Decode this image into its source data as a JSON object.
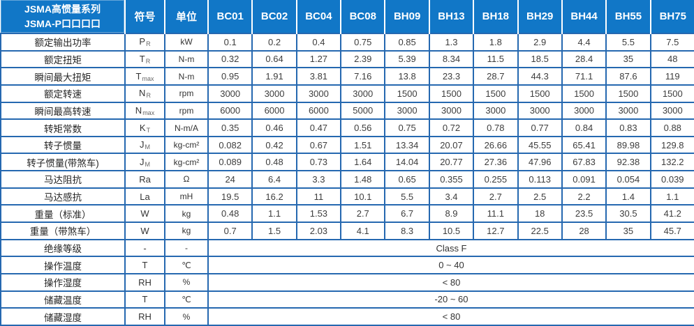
{
  "header": {
    "title_line1": "JSMA高惯量系列",
    "title_line2": "JSMA-P口口口口",
    "symbol_col": "符号",
    "unit_col": "单位",
    "models": [
      "BC01",
      "BC02",
      "BC04",
      "BC08",
      "BH09",
      "BH13",
      "BH18",
      "BH29",
      "BH44",
      "BH55",
      "BH75"
    ]
  },
  "colors": {
    "header_bg": "#1177c7",
    "border_blue": "#2568b0",
    "value_text": "#3d3d3d"
  },
  "rows": [
    {
      "label": "额定输出功率",
      "symbol": "P",
      "sub": "R",
      "unit": "kW",
      "values": [
        "0.1",
        "0.2",
        "0.4",
        "0.75",
        "0.85",
        "1.3",
        "1.8",
        "2.9",
        "4.4",
        "5.5",
        "7.5"
      ]
    },
    {
      "label": "额定扭矩",
      "symbol": "T",
      "sub": "R",
      "unit": "N-m",
      "values": [
        "0.32",
        "0.64",
        "1.27",
        "2.39",
        "5.39",
        "8.34",
        "11.5",
        "18.5",
        "28.4",
        "35",
        "48"
      ]
    },
    {
      "label": "瞬间最大扭矩",
      "symbol": "T",
      "sub": "max",
      "unit": "N-m",
      "values": [
        "0.95",
        "1.91",
        "3.81",
        "7.16",
        "13.8",
        "23.3",
        "28.7",
        "44.3",
        "71.1",
        "87.6",
        "119"
      ]
    },
    {
      "label": "额定转速",
      "symbol": "N",
      "sub": "R",
      "unit": "rpm",
      "values": [
        "3000",
        "3000",
        "3000",
        "3000",
        "1500",
        "1500",
        "1500",
        "1500",
        "1500",
        "1500",
        "1500"
      ]
    },
    {
      "label": "瞬间最高转速",
      "symbol": "N",
      "sub": "max",
      "unit": "rpm",
      "values": [
        "6000",
        "6000",
        "6000",
        "5000",
        "3000",
        "3000",
        "3000",
        "3000",
        "3000",
        "3000",
        "3000"
      ]
    },
    {
      "label": "转矩常数",
      "symbol": "K",
      "sub": "T",
      "unit": "N-m/A",
      "values": [
        "0.35",
        "0.46",
        "0.47",
        "0.56",
        "0.75",
        "0.72",
        "0.78",
        "0.77",
        "0.84",
        "0.83",
        "0.88"
      ]
    },
    {
      "label": "转子惯量",
      "symbol": "J",
      "sub": "M",
      "unit": "kg-cm²",
      "values": [
        "0.082",
        "0.42",
        "0.67",
        "1.51",
        "13.34",
        "20.07",
        "26.66",
        "45.55",
        "65.41",
        "89.98",
        "129.8"
      ]
    },
    {
      "label": "转子惯量(带煞车)",
      "symbol": "J",
      "sub": "M",
      "unit": "kg-cm²",
      "values": [
        "0.089",
        "0.48",
        "0.73",
        "1.64",
        "14.04",
        "20.77",
        "27.36",
        "47.96",
        "67.83",
        "92.38",
        "132.2"
      ]
    },
    {
      "label": "马达阻抗",
      "symbol": "Ra",
      "sub": "",
      "unit": "Ω",
      "values": [
        "24",
        "6.4",
        "3.3",
        "1.48",
        "0.65",
        "0.355",
        "0.255",
        "0.113",
        "0.091",
        "0.054",
        "0.039"
      ]
    },
    {
      "label": "马达感抗",
      "symbol": "La",
      "sub": "",
      "unit": "mH",
      "values": [
        "19.5",
        "16.2",
        "11",
        "10.1",
        "5.5",
        "3.4",
        "2.7",
        "2.5",
        "2.2",
        "1.4",
        "1.1"
      ]
    },
    {
      "label": "重量（标准）",
      "symbol": "W",
      "sub": "",
      "unit": "kg",
      "values": [
        "0.48",
        "1.1",
        "1.53",
        "2.7",
        "6.7",
        "8.9",
        "11.1",
        "18",
        "23.5",
        "30.5",
        "41.2"
      ]
    },
    {
      "label": "重量（带煞车）",
      "symbol": "W",
      "sub": "",
      "unit": "kg",
      "values": [
        "0.7",
        "1.5",
        "2.03",
        "4.1",
        "8.3",
        "10.5",
        "12.7",
        "22.5",
        "28",
        "35",
        "45.7"
      ]
    },
    {
      "label": "绝缘等级",
      "symbol": "-",
      "sub": "",
      "unit": "-",
      "span": "Class F"
    },
    {
      "label": "操作温度",
      "symbol": "T",
      "sub": "",
      "unit": "℃",
      "span": "0 ~ 40"
    },
    {
      "label": "操作湿度",
      "symbol": "RH",
      "sub": "",
      "unit": "%",
      "span": "< 80"
    },
    {
      "label": "储藏温度",
      "symbol": "T",
      "sub": "",
      "unit": "℃",
      "span": "-20 ~ 60"
    },
    {
      "label": "储藏湿度",
      "symbol": "RH",
      "sub": "",
      "unit": "%",
      "span": "< 80"
    }
  ]
}
